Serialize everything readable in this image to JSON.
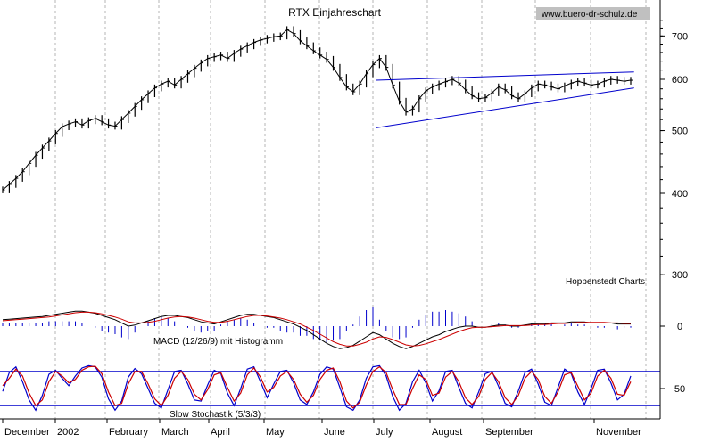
{
  "chart_data": {
    "type": "line",
    "title": "RTX Einjahreschart",
    "watermark": "www.buero-dr-schulz.de",
    "source_label": "Hoppenstedt Charts",
    "x_month_labels": [
      "December",
      "2002",
      "February",
      "March",
      "April",
      "May",
      "June",
      "July",
      "August",
      "September",
      "November"
    ],
    "colors": {
      "price": "#000000",
      "trend": "#0000cc",
      "signal": "#cc0000",
      "histogram": "#0000cc",
      "grid": "#b4b4b4"
    },
    "price_panel": {
      "scale": "log",
      "ylim": [
        300,
        700
      ],
      "y_ticks": [
        300,
        400,
        500,
        600,
        700
      ],
      "close": [
        405,
        413,
        422,
        432,
        445,
        458,
        470,
        482,
        495,
        507,
        512,
        516,
        510,
        518,
        522,
        516,
        510,
        508,
        520,
        532,
        545,
        558,
        570,
        582,
        590,
        596,
        588,
        600,
        612,
        624,
        636,
        646,
        650,
        654,
        646,
        658,
        668,
        676,
        684,
        690,
        694,
        698,
        700,
        716,
        706,
        688,
        676,
        664,
        654,
        644,
        626,
        604,
        584,
        574,
        590,
        612,
        632,
        646,
        626,
        588,
        555,
        534,
        540,
        560,
        576,
        584,
        590,
        595,
        600,
        592,
        578,
        566,
        560,
        562,
        572,
        584,
        578,
        566,
        560,
        570,
        582,
        590,
        588,
        584,
        580,
        586,
        592,
        596,
        592,
        588,
        590,
        596,
        600,
        598,
        596,
        598
      ],
      "trend_lines": [
        {
          "name": "upper",
          "from": [
            56.5,
            598
          ],
          "to": [
            95.5,
            616
          ]
        },
        {
          "name": "lower",
          "from": [
            56.5,
            505
          ],
          "to": [
            95.5,
            582
          ]
        }
      ]
    },
    "macd_panel": {
      "label": "MACD (12/26/9) mit Histogramm",
      "ylim": [
        -25,
        25
      ],
      "y_ticks": [
        0
      ],
      "macd": [
        6,
        6.5,
        7,
        7.5,
        8,
        8.5,
        9,
        10,
        11,
        12,
        13,
        14,
        14,
        13,
        12,
        10,
        8,
        6,
        3,
        0,
        1,
        3,
        5,
        7,
        9,
        10,
        10,
        9,
        8,
        6,
        4,
        3,
        2,
        4,
        6,
        8,
        10,
        11,
        11,
        10,
        9,
        8,
        6,
        4,
        2,
        -1,
        -4,
        -8,
        -12,
        -16,
        -19,
        -21,
        -20,
        -18,
        -14,
        -10,
        -6,
        -8,
        -12,
        -16,
        -19,
        -21,
        -19,
        -16,
        -13,
        -10,
        -8,
        -5,
        -3,
        -1,
        0,
        0,
        -1,
        -1,
        0,
        1,
        1,
        0,
        0,
        1,
        2,
        2,
        2,
        3,
        3,
        3,
        4,
        4,
        4,
        3,
        3,
        3,
        3,
        2,
        2,
        2
      ],
      "signal": [
        5,
        5.5,
        6,
        6.5,
        7,
        7.5,
        8,
        8.5,
        9.5,
        10.5,
        11.5,
        12.5,
        13,
        13,
        12.5,
        11.5,
        10,
        8.5,
        6.5,
        4,
        3,
        3,
        3.5,
        4.5,
        6,
        7.5,
        8.5,
        9,
        8.5,
        7.5,
        6,
        4.5,
        3.5,
        3.5,
        4.5,
        6,
        7.5,
        9,
        10,
        10,
        9.5,
        8.5,
        7.5,
        6,
        4,
        2,
        -1,
        -4,
        -7.5,
        -11,
        -14.5,
        -17,
        -18.5,
        -18.5,
        -17,
        -15,
        -12,
        -10,
        -10.5,
        -12.5,
        -15,
        -17.5,
        -18.5,
        -18,
        -16.5,
        -14.5,
        -12.5,
        -10,
        -7.5,
        -5,
        -3,
        -1.5,
        -1,
        -1,
        -0.5,
        0,
        0.5,
        0.5,
        0.5,
        0.5,
        1,
        1.5,
        1.5,
        2,
        2.5,
        2.5,
        3,
        3.5,
        3.5,
        3.5,
        3.5,
        3.5,
        3,
        3,
        2.5,
        2.5
      ]
    },
    "stochastic_panel": {
      "label": "Slow Stochastik (5/3/3)",
      "ylim": [
        0,
        100
      ],
      "y_ticks": [
        50
      ],
      "reference_lines": [
        20,
        80
      ],
      "k": [
        45,
        78,
        88,
        62,
        30,
        12,
        38,
        75,
        82,
        68,
        55,
        72,
        86,
        90,
        88,
        70,
        32,
        12,
        28,
        70,
        85,
        76,
        50,
        24,
        16,
        48,
        80,
        82,
        58,
        30,
        28,
        56,
        82,
        76,
        42,
        20,
        50,
        84,
        88,
        62,
        34,
        58,
        80,
        82,
        60,
        30,
        22,
        44,
        75,
        88,
        84,
        52,
        18,
        12,
        30,
        68,
        88,
        90,
        72,
        36,
        12,
        24,
        62,
        82,
        60,
        28,
        46,
        80,
        82,
        52,
        24,
        16,
        44,
        76,
        80,
        54,
        24,
        18,
        46,
        78,
        84,
        58,
        26,
        20,
        52,
        84,
        76,
        44,
        22,
        50,
        82,
        84,
        60,
        30,
        40,
        72
      ],
      "d": [
        55,
        68,
        84,
        72,
        42,
        20,
        30,
        62,
        80,
        72,
        60,
        66,
        82,
        88,
        89,
        76,
        44,
        20,
        24,
        58,
        80,
        80,
        58,
        32,
        20,
        38,
        68,
        80,
        66,
        40,
        30,
        48,
        74,
        78,
        52,
        28,
        42,
        74,
        86,
        70,
        44,
        52,
        72,
        80,
        66,
        40,
        26,
        38,
        66,
        82,
        86,
        62,
        28,
        16,
        26,
        56,
        80,
        88,
        78,
        48,
        22,
        22,
        50,
        74,
        66,
        38,
        42,
        70,
        80,
        62,
        34,
        22,
        36,
        66,
        78,
        62,
        34,
        22,
        38,
        68,
        80,
        66,
        36,
        24,
        44,
        74,
        78,
        54,
        30,
        42,
        72,
        82,
        68,
        40,
        38,
        62
      ]
    }
  }
}
